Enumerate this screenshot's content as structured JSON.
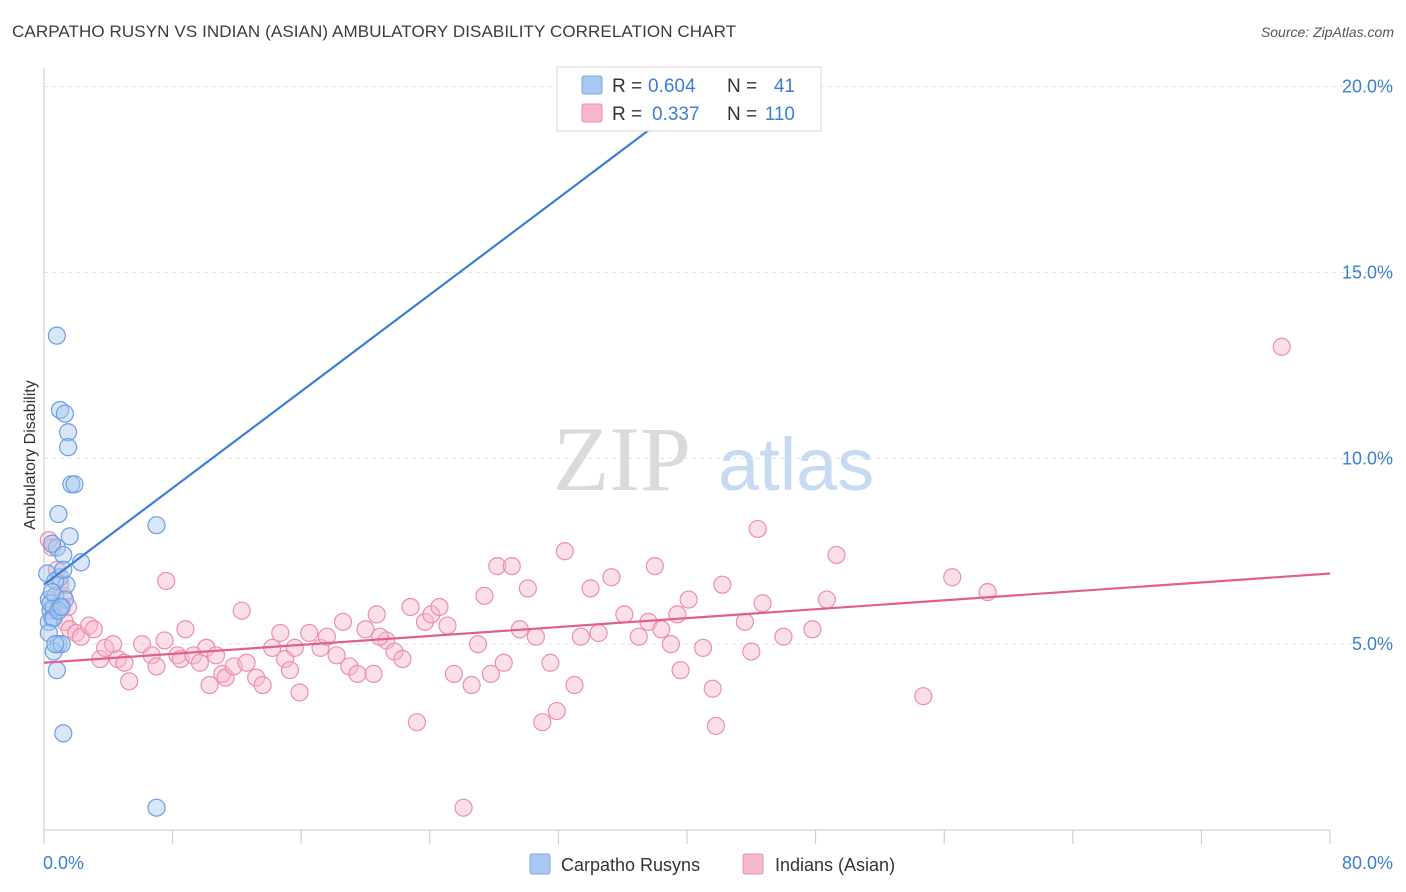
{
  "title": "CARPATHO RUSYN VS INDIAN (ASIAN) AMBULATORY DISABILITY CORRELATION CHART",
  "source": "Source: ZipAtlas.com",
  "watermark": {
    "zip": "ZIP",
    "atlas": "atlas"
  },
  "legend_box": [
    {
      "r_label": "R =",
      "r_value": "0.604",
      "n_label": "N =",
      "n_value": "41",
      "color": "#a8c8f0"
    },
    {
      "r_label": "R =",
      "r_value": "0.337",
      "n_label": "N =",
      "n_value": "110",
      "color": "#f7b8cc"
    }
  ],
  "bottom_legend": [
    {
      "label": "Carpatho Rusyns",
      "color": "#a8c8f0"
    },
    {
      "label": "Indians (Asian)",
      "color": "#f7b8cc"
    }
  ],
  "chart_data": {
    "type": "scatter",
    "ylabel": "Ambulatory Disability",
    "xlabel": "",
    "xlim": [
      0,
      80
    ],
    "ylim": [
      0,
      20.5
    ],
    "x_tick_labels": [
      "0.0%",
      "80.0%"
    ],
    "y_ticks": [
      5,
      10,
      15,
      20
    ],
    "y_tick_labels": [
      "5.0%",
      "10.0%",
      "15.0%",
      "20.0%"
    ],
    "grid": true,
    "series": [
      {
        "name": "Carpatho Rusyns",
        "color": "#a8c8f0",
        "line_color": "#3a7fd4",
        "trend": {
          "x": [
            0,
            40
          ],
          "y": [
            6.6,
            19.6
          ]
        },
        "points": [
          [
            0.2,
            6.9
          ],
          [
            0.3,
            6.2
          ],
          [
            0.4,
            5.9
          ],
          [
            0.5,
            5.7
          ],
          [
            0.6,
            6.0
          ],
          [
            0.3,
            5.6
          ],
          [
            0.7,
            6.3
          ],
          [
            0.8,
            7.6
          ],
          [
            0.5,
            7.7
          ],
          [
            1.0,
            6.8
          ],
          [
            1.2,
            7.4
          ],
          [
            0.8,
            13.3
          ],
          [
            1.0,
            11.3
          ],
          [
            1.3,
            11.2
          ],
          [
            1.5,
            10.7
          ],
          [
            1.5,
            10.3
          ],
          [
            1.7,
            9.3
          ],
          [
            1.9,
            9.3
          ],
          [
            0.9,
            8.5
          ],
          [
            1.6,
            7.9
          ],
          [
            2.3,
            7.2
          ],
          [
            1.4,
            6.6
          ],
          [
            1.3,
            6.2
          ],
          [
            1.0,
            6.0
          ],
          [
            0.6,
            5.7
          ],
          [
            0.9,
            5.0
          ],
          [
            0.6,
            4.8
          ],
          [
            0.8,
            4.3
          ],
          [
            1.1,
            5.0
          ],
          [
            0.7,
            6.7
          ],
          [
            1.2,
            2.6
          ],
          [
            7.0,
            8.2
          ],
          [
            7.0,
            0.6
          ],
          [
            37.5,
            19.7
          ],
          [
            0.4,
            6.1
          ],
          [
            0.3,
            5.3
          ],
          [
            0.9,
            5.9
          ],
          [
            1.1,
            6.0
          ],
          [
            0.5,
            6.4
          ],
          [
            1.2,
            7.0
          ],
          [
            0.7,
            5.0
          ]
        ]
      },
      {
        "name": "Indians (Asian)",
        "color": "#f7b8cc",
        "line_color": "#e0608a",
        "trend": {
          "x": [
            0,
            80
          ],
          "y": [
            4.5,
            6.9
          ]
        },
        "points": [
          [
            0.3,
            7.8
          ],
          [
            0.5,
            7.6
          ],
          [
            0.8,
            7.0
          ],
          [
            1.0,
            6.6
          ],
          [
            1.2,
            6.3
          ],
          [
            1.5,
            6.0
          ],
          [
            1.3,
            5.6
          ],
          [
            1.6,
            5.4
          ],
          [
            2.0,
            5.3
          ],
          [
            2.3,
            5.2
          ],
          [
            2.8,
            5.5
          ],
          [
            3.1,
            5.4
          ],
          [
            3.5,
            4.6
          ],
          [
            3.8,
            4.9
          ],
          [
            4.3,
            5.0
          ],
          [
            4.6,
            4.6
          ],
          [
            5.0,
            4.5
          ],
          [
            5.3,
            4.0
          ],
          [
            6.1,
            5.0
          ],
          [
            6.7,
            4.7
          ],
          [
            7.0,
            4.4
          ],
          [
            7.5,
            5.1
          ],
          [
            7.6,
            6.7
          ],
          [
            8.3,
            4.7
          ],
          [
            8.5,
            4.6
          ],
          [
            8.8,
            5.4
          ],
          [
            9.3,
            4.7
          ],
          [
            9.7,
            4.5
          ],
          [
            10.1,
            4.9
          ],
          [
            10.3,
            3.9
          ],
          [
            10.7,
            4.7
          ],
          [
            11.1,
            4.2
          ],
          [
            11.3,
            4.1
          ],
          [
            11.8,
            4.4
          ],
          [
            12.3,
            5.9
          ],
          [
            12.6,
            4.5
          ],
          [
            13.2,
            4.1
          ],
          [
            13.6,
            3.9
          ],
          [
            14.2,
            4.9
          ],
          [
            14.7,
            5.3
          ],
          [
            15.0,
            4.6
          ],
          [
            15.3,
            4.3
          ],
          [
            15.6,
            4.9
          ],
          [
            15.9,
            3.7
          ],
          [
            16.5,
            5.3
          ],
          [
            17.2,
            4.9
          ],
          [
            17.6,
            5.2
          ],
          [
            18.2,
            4.7
          ],
          [
            18.6,
            5.6
          ],
          [
            19.0,
            4.4
          ],
          [
            19.5,
            4.2
          ],
          [
            20.0,
            5.4
          ],
          [
            20.5,
            4.2
          ],
          [
            20.7,
            5.8
          ],
          [
            21.3,
            5.1
          ],
          [
            21.8,
            4.8
          ],
          [
            22.3,
            4.6
          ],
          [
            22.8,
            6.0
          ],
          [
            23.2,
            2.9
          ],
          [
            23.7,
            5.6
          ],
          [
            24.1,
            5.8
          ],
          [
            24.6,
            6.0
          ],
          [
            25.1,
            5.5
          ],
          [
            25.5,
            4.2
          ],
          [
            26.1,
            0.6
          ],
          [
            26.6,
            3.9
          ],
          [
            27.0,
            5.0
          ],
          [
            27.4,
            6.3
          ],
          [
            27.8,
            4.2
          ],
          [
            28.2,
            7.1
          ],
          [
            28.6,
            4.5
          ],
          [
            29.1,
            7.1
          ],
          [
            29.6,
            5.4
          ],
          [
            30.1,
            6.5
          ],
          [
            30.6,
            5.2
          ],
          [
            31.0,
            2.9
          ],
          [
            31.5,
            4.5
          ],
          [
            31.9,
            3.2
          ],
          [
            32.4,
            7.5
          ],
          [
            33.0,
            3.9
          ],
          [
            33.4,
            5.2
          ],
          [
            34.0,
            6.5
          ],
          [
            34.5,
            5.3
          ],
          [
            35.3,
            6.8
          ],
          [
            36.1,
            5.8
          ],
          [
            37.0,
            5.2
          ],
          [
            37.6,
            5.6
          ],
          [
            38.0,
            7.1
          ],
          [
            38.4,
            5.4
          ],
          [
            39.0,
            5.0
          ],
          [
            39.4,
            5.8
          ],
          [
            39.6,
            4.3
          ],
          [
            40.1,
            6.2
          ],
          [
            41.0,
            4.9
          ],
          [
            41.6,
            3.8
          ],
          [
            41.8,
            2.8
          ],
          [
            42.2,
            6.6
          ],
          [
            43.6,
            5.6
          ],
          [
            44.0,
            4.8
          ],
          [
            44.4,
            8.1
          ],
          [
            44.7,
            6.1
          ],
          [
            46.0,
            5.2
          ],
          [
            47.8,
            5.4
          ],
          [
            48.7,
            6.2
          ],
          [
            49.3,
            7.4
          ],
          [
            54.7,
            3.6
          ],
          [
            56.5,
            6.8
          ],
          [
            58.7,
            6.4
          ],
          [
            77.0,
            13.0
          ],
          [
            20.9,
            5.2
          ]
        ]
      }
    ]
  }
}
